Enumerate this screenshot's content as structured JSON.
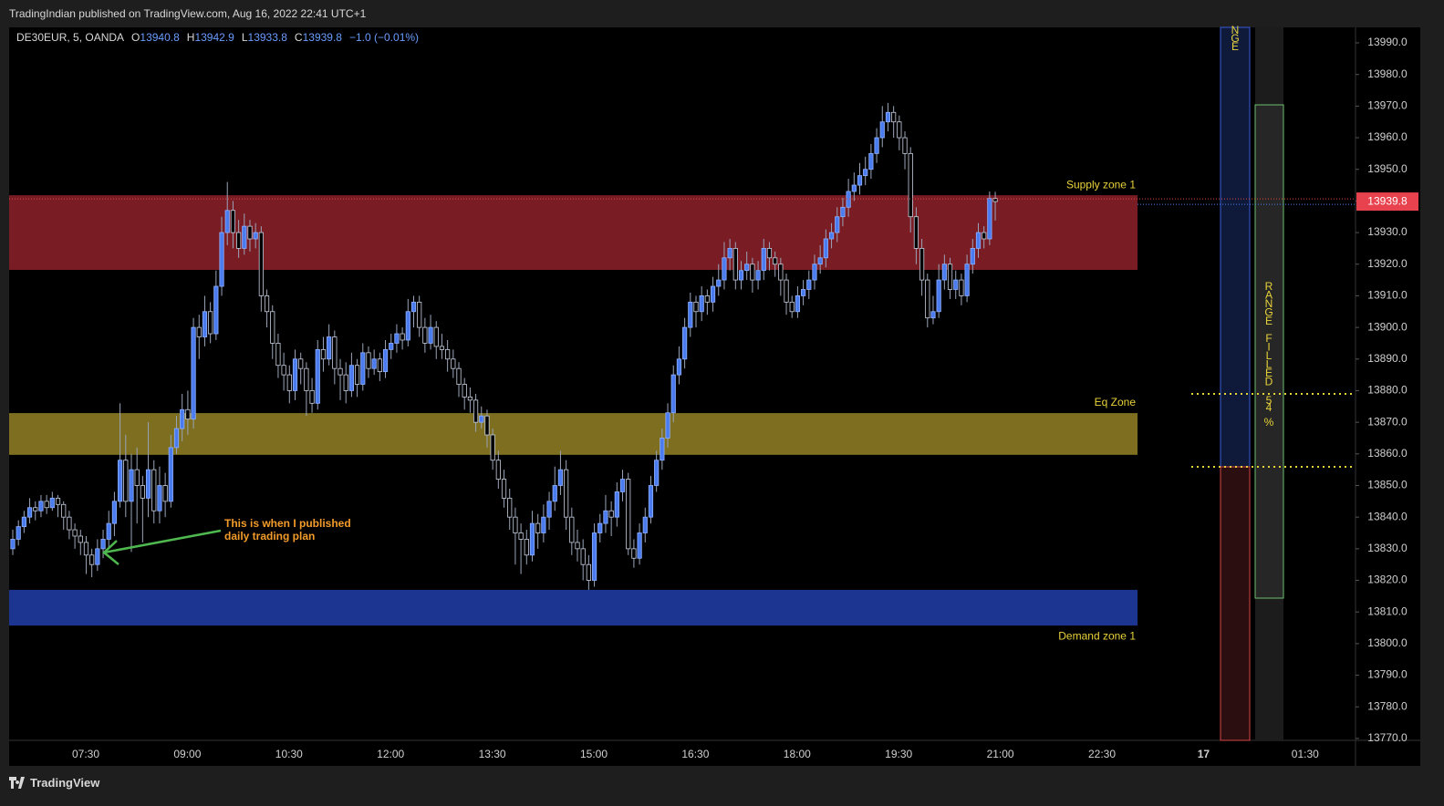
{
  "header": {
    "published": "TradingIndian published on TradingView.com, Aug 16, 2022 22:41 UTC+1"
  },
  "footer": {
    "brand": "TradingView"
  },
  "chart_data": {
    "type": "candlestick",
    "symbol": "DE30EUR, 5, OANDA",
    "ohlc_labels": [
      "O",
      "H",
      "L",
      "C"
    ],
    "change": "−1.0 (−0.01%)",
    "up_color": "#4a7cf0",
    "down_color": "#000000",
    "wick_color": "#9aa4b8",
    "ylim": [
      13769.4,
      13994.9
    ],
    "yticks": [
      {
        "value": 13770,
        "label": "13770.0"
      },
      {
        "value": 13780,
        "label": "13780.0"
      },
      {
        "value": 13790,
        "label": "13790.0"
      },
      {
        "value": 13800,
        "label": "13800.0"
      },
      {
        "value": 13810,
        "label": "13810.0"
      },
      {
        "value": 13820,
        "label": "13820.0"
      },
      {
        "value": 13830,
        "label": "13830.0"
      },
      {
        "value": 13840,
        "label": "13840.0"
      },
      {
        "value": 13850,
        "label": "13850.0"
      },
      {
        "value": 13860,
        "label": "13860.0"
      },
      {
        "value": 13870,
        "label": "13870.0"
      },
      {
        "value": 13880,
        "label": "13880.0"
      },
      {
        "value": 13890,
        "label": "13890.0"
      },
      {
        "value": 13900,
        "label": "13900.0"
      },
      {
        "value": 13910,
        "label": "13910.0"
      },
      {
        "value": 13920,
        "label": "13920.0"
      },
      {
        "value": 13930,
        "label": "13930.0"
      },
      {
        "value": 13940,
        "label": "13940.0"
      },
      {
        "value": 13950,
        "label": "13950.0"
      },
      {
        "value": 13960,
        "label": "13960.0"
      },
      {
        "value": 13970,
        "label": "13970.0"
      },
      {
        "value": 13980,
        "label": "13980.0"
      },
      {
        "value": 13990,
        "label": "13990.0"
      }
    ],
    "xticks": [
      "07:30",
      "09:00",
      "10:30",
      "12:00",
      "13:30",
      "15:00",
      "16:30",
      "18:00",
      "19:30",
      "21:00",
      "22:30",
      "17",
      "01:30"
    ],
    "zones": [
      {
        "name": "Supply zone 1",
        "top": 13941.8,
        "bottom": 13918.2,
        "color": "#7a1c24",
        "label_pos": "above"
      },
      {
        "name": "Eq Zone",
        "top": 13872.9,
        "bottom": 13859.7,
        "color": "#7d6e20",
        "label_pos": "above"
      },
      {
        "name": "Demand zone 1",
        "top": 13817.0,
        "bottom": 13805.7,
        "color": "#1b3590",
        "label_pos": "below"
      }
    ],
    "annotation": [
      "This is when I published",
      "daily trading plan"
    ],
    "range_texts": {
      "top": "NGE",
      "side": "RANGE FILLED",
      "pct": "54 %"
    },
    "candles": [
      [
        13830,
        13836,
        13828,
        13833
      ],
      [
        13833,
        13839,
        13831,
        13837
      ],
      [
        13837,
        13842,
        13835,
        13840
      ],
      [
        13840,
        13846,
        13838,
        13843
      ],
      [
        13843,
        13845,
        13839,
        13842
      ],
      [
        13842,
        13847,
        13840,
        13845
      ],
      [
        13845,
        13847,
        13841,
        13843
      ],
      [
        13843,
        13848,
        13842,
        13846
      ],
      [
        13846,
        13847,
        13840,
        13844
      ],
      [
        13844,
        13845,
        13836,
        13840
      ],
      [
        13840,
        13842,
        13833,
        13836
      ],
      [
        13836,
        13838,
        13830,
        13834
      ],
      [
        13834,
        13836,
        13828,
        13832
      ],
      [
        13832,
        13834,
        13822,
        13828
      ],
      [
        13828,
        13830,
        13821,
        13825
      ],
      [
        13825,
        13833,
        13823,
        13830
      ],
      [
        13830,
        13836,
        13827,
        13833
      ],
      [
        13833,
        13842,
        13830,
        13838
      ],
      [
        13838,
        13848,
        13834,
        13845
      ],
      [
        13845,
        13876,
        13843,
        13858
      ],
      [
        13858,
        13866,
        13840,
        13845
      ],
      [
        13845,
        13860,
        13829,
        13855
      ],
      [
        13855,
        13862,
        13838,
        13850
      ],
      [
        13850,
        13853,
        13832,
        13846
      ],
      [
        13846,
        13870,
        13840,
        13855
      ],
      [
        13855,
        13858,
        13838,
        13842
      ],
      [
        13842,
        13856,
        13838,
        13850
      ],
      [
        13850,
        13854,
        13840,
        13845
      ],
      [
        13845,
        13866,
        13843,
        13862
      ],
      [
        13862,
        13872,
        13860,
        13868
      ],
      [
        13868,
        13879,
        13864,
        13874
      ],
      [
        13874,
        13880,
        13866,
        13871
      ],
      [
        13871,
        13903,
        13868,
        13900
      ],
      [
        13900,
        13904,
        13890,
        13897
      ],
      [
        13897,
        13910,
        13894,
        13905
      ],
      [
        13905,
        13908,
        13895,
        13898
      ],
      [
        13898,
        13918,
        13896,
        13913
      ],
      [
        13913,
        13935,
        13910,
        13930
      ],
      [
        13930,
        13946,
        13926,
        13937
      ],
      [
        13937,
        13940,
        13925,
        13930
      ],
      [
        13930,
        13934,
        13922,
        13925
      ],
      [
        13925,
        13936,
        13923,
        13932
      ],
      [
        13932,
        13934,
        13924,
        13928
      ],
      [
        13928,
        13933,
        13925,
        13930
      ],
      [
        13930,
        13932,
        13905,
        13910
      ],
      [
        13910,
        13912,
        13900,
        13905
      ],
      [
        13905,
        13907,
        13890,
        13895
      ],
      [
        13895,
        13898,
        13884,
        13888
      ],
      [
        13888,
        13892,
        13880,
        13885
      ],
      [
        13885,
        13888,
        13876,
        13880
      ],
      [
        13880,
        13893,
        13877,
        13890
      ],
      [
        13890,
        13892,
        13882,
        13887
      ],
      [
        13887,
        13889,
        13872,
        13880
      ],
      [
        13880,
        13884,
        13873,
        13876
      ],
      [
        13876,
        13896,
        13874,
        13893
      ],
      [
        13893,
        13897,
        13886,
        13890
      ],
      [
        13890,
        13901,
        13888,
        13897
      ],
      [
        13897,
        13899,
        13882,
        13887
      ],
      [
        13887,
        13890,
        13877,
        13885
      ],
      [
        13885,
        13889,
        13876,
        13880
      ],
      [
        13880,
        13892,
        13878,
        13888
      ],
      [
        13888,
        13890,
        13878,
        13882
      ],
      [
        13882,
        13895,
        13880,
        13892
      ],
      [
        13892,
        13894,
        13884,
        13887
      ],
      [
        13887,
        13893,
        13885,
        13890
      ],
      [
        13890,
        13892,
        13883,
        13886
      ],
      [
        13886,
        13896,
        13884,
        13893
      ],
      [
        13893,
        13898,
        13890,
        13895
      ],
      [
        13895,
        13901,
        13892,
        13898
      ],
      [
        13898,
        13900,
        13893,
        13896
      ],
      [
        13896,
        13909,
        13894,
        13905
      ],
      [
        13905,
        13910,
        13900,
        13908
      ],
      [
        13908,
        13910,
        13897,
        13900
      ],
      [
        13900,
        13903,
        13892,
        13895
      ],
      [
        13895,
        13904,
        13893,
        13900
      ],
      [
        13900,
        13902,
        13890,
        13894
      ],
      [
        13894,
        13898,
        13890,
        13893
      ],
      [
        13893,
        13896,
        13886,
        13890
      ],
      [
        13890,
        13893,
        13884,
        13887
      ],
      [
        13887,
        13889,
        13878,
        13882
      ],
      [
        13882,
        13884,
        13874,
        13878
      ],
      [
        13878,
        13881,
        13873,
        13877
      ],
      [
        13877,
        13879,
        13867,
        13870
      ],
      [
        13870,
        13875,
        13868,
        13872
      ],
      [
        13872,
        13874,
        13862,
        13866
      ],
      [
        13866,
        13868,
        13855,
        13858
      ],
      [
        13858,
        13861,
        13849,
        13852
      ],
      [
        13852,
        13855,
        13843,
        13846
      ],
      [
        13846,
        13849,
        13836,
        13840
      ],
      [
        13840,
        13843,
        13825,
        13835
      ],
      [
        13835,
        13838,
        13822,
        13833
      ],
      [
        13833,
        13836,
        13825,
        13828
      ],
      [
        13828,
        13842,
        13826,
        13838
      ],
      [
        13838,
        13841,
        13830,
        13835
      ],
      [
        13835,
        13844,
        13832,
        13840
      ],
      [
        13840,
        13848,
        13836,
        13845
      ],
      [
        13845,
        13856,
        13842,
        13850
      ],
      [
        13850,
        13861,
        13847,
        13855
      ],
      [
        13855,
        13858,
        13836,
        13840
      ],
      [
        13840,
        13843,
        13828,
        13832
      ],
      [
        13832,
        13836,
        13826,
        13830
      ],
      [
        13830,
        13833,
        13820,
        13825
      ],
      [
        13825,
        13828,
        13817,
        13820
      ],
      [
        13820,
        13838,
        13818,
        13835
      ],
      [
        13835,
        13841,
        13832,
        13838
      ],
      [
        13838,
        13847,
        13835,
        13842
      ],
      [
        13842,
        13845,
        13834,
        13840
      ],
      [
        13840,
        13851,
        13837,
        13848
      ],
      [
        13848,
        13855,
        13845,
        13852
      ],
      [
        13852,
        13854,
        13828,
        13830
      ],
      [
        13830,
        13833,
        13824,
        13827
      ],
      [
        13827,
        13838,
        13825,
        13835
      ],
      [
        13835,
        13843,
        13832,
        13840
      ],
      [
        13840,
        13853,
        13838,
        13850
      ],
      [
        13850,
        13861,
        13848,
        13858
      ],
      [
        13858,
        13868,
        13855,
        13865
      ],
      [
        13865,
        13876,
        13862,
        13873
      ],
      [
        13873,
        13888,
        13870,
        13885
      ],
      [
        13885,
        13894,
        13882,
        13890
      ],
      [
        13890,
        13903,
        13887,
        13900
      ],
      [
        13900,
        13911,
        13897,
        13908
      ],
      [
        13908,
        13910,
        13900,
        13905
      ],
      [
        13905,
        13913,
        13902,
        13910
      ],
      [
        13910,
        13912,
        13904,
        13908
      ],
      [
        13908,
        13916,
        13905,
        13913
      ],
      [
        13913,
        13920,
        13910,
        13915
      ],
      [
        13915,
        13927,
        13912,
        13922
      ],
      [
        13922,
        13928,
        13918,
        13925
      ],
      [
        13925,
        13927,
        13912,
        13915
      ],
      [
        13915,
        13921,
        13912,
        13918
      ],
      [
        13918,
        13924,
        13915,
        13920
      ],
      [
        13920,
        13922,
        13911,
        13915
      ],
      [
        13915,
        13921,
        13912,
        13918
      ],
      [
        13918,
        13928,
        13915,
        13925
      ],
      [
        13925,
        13927,
        13918,
        13922
      ],
      [
        13922,
        13924,
        13916,
        13920
      ],
      [
        13920,
        13922,
        13910,
        13915
      ],
      [
        13915,
        13917,
        13904,
        13908
      ],
      [
        13908,
        13910,
        13903,
        13905
      ],
      [
        13905,
        13913,
        13903,
        13910
      ],
      [
        13910,
        13915,
        13907,
        13912
      ],
      [
        13912,
        13918,
        13909,
        13915
      ],
      [
        13915,
        13923,
        13912,
        13920
      ],
      [
        13920,
        13926,
        13917,
        13922
      ],
      [
        13922,
        13931,
        13919,
        13928
      ],
      [
        13928,
        13933,
        13925,
        13930
      ],
      [
        13930,
        13938,
        13927,
        13935
      ],
      [
        13935,
        13941,
        13932,
        13938
      ],
      [
        13938,
        13947,
        13935,
        13943
      ],
      [
        13943,
        13949,
        13940,
        13945
      ],
      [
        13945,
        13952,
        13942,
        13948
      ],
      [
        13948,
        13954,
        13945,
        13950
      ],
      [
        13950,
        13958,
        13947,
        13955
      ],
      [
        13955,
        13963,
        13952,
        13960
      ],
      [
        13960,
        13970,
        13957,
        13965
      ],
      [
        13965,
        13971,
        13962,
        13968
      ],
      [
        13968,
        13970,
        13960,
        13965
      ],
      [
        13965,
        13967,
        13956,
        13960
      ],
      [
        13960,
        13962,
        13950,
        13955
      ],
      [
        13955,
        13957,
        13930,
        13935
      ],
      [
        13935,
        13938,
        13920,
        13925
      ],
      [
        13925,
        13928,
        13910,
        13915
      ],
      [
        13915,
        13917,
        13900,
        13903
      ],
      [
        13903,
        13910,
        13901,
        13905
      ],
      [
        13905,
        13920,
        13903,
        13915
      ],
      [
        13915,
        13923,
        13912,
        13920
      ],
      [
        13920,
        13922,
        13909,
        13912
      ],
      [
        13912,
        13918,
        13909,
        13915
      ],
      [
        13915,
        13917,
        13907,
        13910
      ],
      [
        13910,
        13923,
        13908,
        13920
      ],
      [
        13920,
        13928,
        13917,
        13925
      ],
      [
        13925,
        13933,
        13922,
        13930
      ],
      [
        13930,
        13932,
        13925,
        13928
      ],
      [
        13928,
        13943,
        13926,
        13940.8
      ],
      [
        13940.8,
        13942.9,
        13933.8,
        13939.8
      ]
    ]
  }
}
